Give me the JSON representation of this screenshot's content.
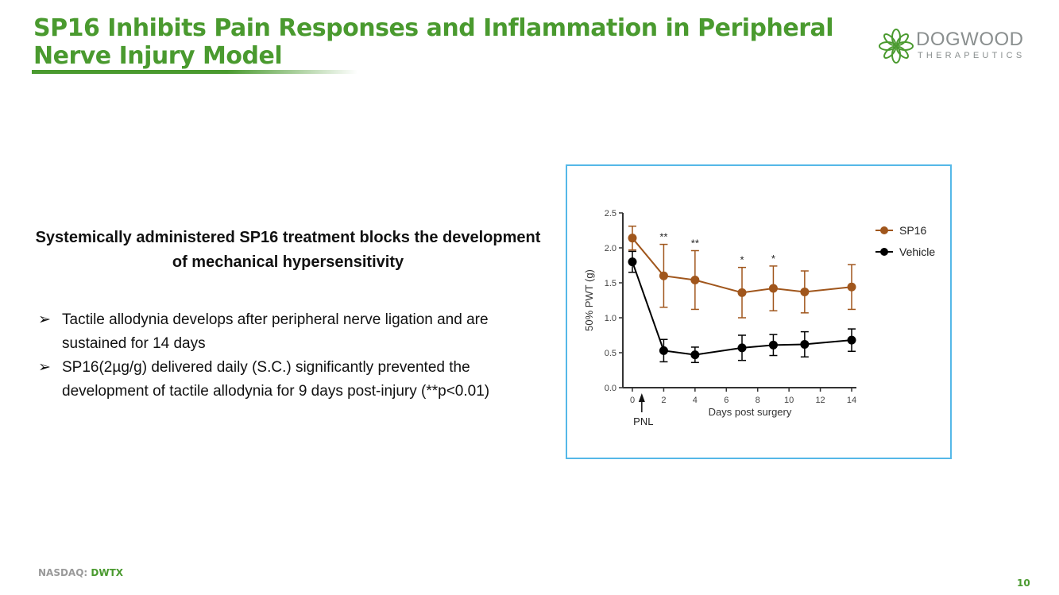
{
  "slide": {
    "title": "SP16 Inhibits Pain Responses and Inflammation in Peripheral Nerve Injury Model",
    "logo": {
      "name": "DOGWOOD",
      "subtitle": "THERAPEUTICS"
    },
    "subheading": "Systemically administered SP16 treatment blocks the development of mechanical hypersensitivity",
    "bullets": [
      {
        "marker": "➢",
        "text": "Tactile allodynia develops after peripheral nerve ligation and are sustained for 14 days"
      },
      {
        "marker": "➢",
        "text": "SP16(2µg/g) delivered daily (S.C.) significantly prevented the development of tactile allodynia for 9 days post-injury (**p<0.01)"
      }
    ],
    "footer": {
      "exchange": "NASDAQ:",
      "ticker": "DWTX"
    },
    "page_number": "10",
    "colors": {
      "brand_green": "#4a9a2f",
      "frame_blue": "#55b8e8",
      "sp16": "#a0561c",
      "vehicle": "#000000"
    }
  },
  "chart_data": {
    "type": "line",
    "xlabel": "Days post surgery",
    "ylabel": "50% PWT (g)",
    "xlim": [
      0,
      14
    ],
    "ylim": [
      0,
      2.5
    ],
    "xticks": [
      "0",
      "2",
      "4",
      "6",
      "8",
      "10",
      "12",
      "14"
    ],
    "yticks": [
      "0.0",
      "0.5",
      "1.0",
      "1.5",
      "2.0",
      "2.5"
    ],
    "grid": false,
    "legend": "top-right",
    "annotation": {
      "label": "PNL",
      "x": 0.6
    },
    "x": [
      0,
      2,
      4,
      7,
      9,
      11,
      14
    ],
    "series": [
      {
        "name": "SP16",
        "color": "#a0561c",
        "values": [
          2.14,
          1.6,
          1.54,
          1.36,
          1.42,
          1.37,
          1.44
        ],
        "errors": [
          0.17,
          0.45,
          0.42,
          0.36,
          0.32,
          0.3,
          0.32
        ]
      },
      {
        "name": "Vehicle",
        "color": "#000000",
        "values": [
          1.8,
          0.53,
          0.47,
          0.57,
          0.61,
          0.62,
          0.68
        ],
        "errors": [
          0.15,
          0.16,
          0.11,
          0.18,
          0.15,
          0.18,
          0.16
        ]
      }
    ],
    "significance": [
      {
        "x": 2,
        "label": "**"
      },
      {
        "x": 4,
        "label": "**"
      },
      {
        "x": 7,
        "label": "*"
      },
      {
        "x": 9,
        "label": "*"
      }
    ]
  }
}
